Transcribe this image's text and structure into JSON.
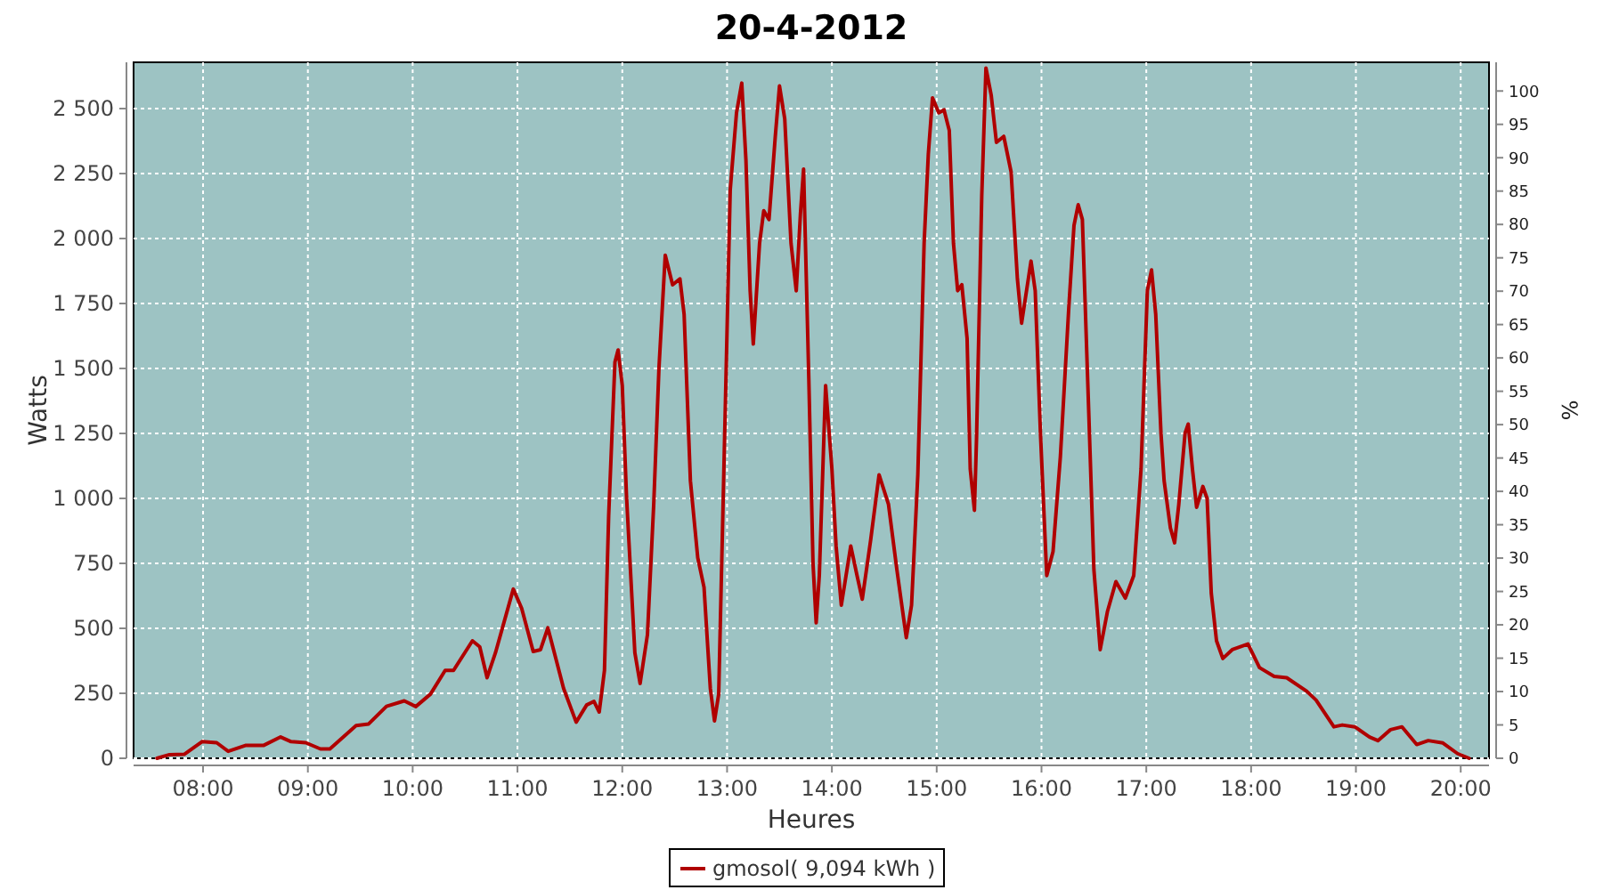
{
  "chart_data": {
    "type": "line",
    "title": "20-4-2012",
    "xlabel": "Heures",
    "ylabel": "Watts",
    "y2label": "%",
    "xlim": [
      7.337,
      20.27
    ],
    "xticks": [
      {
        "value": 8,
        "label": "08:00"
      },
      {
        "value": 9,
        "label": "09:00"
      },
      {
        "value": 10,
        "label": "10:00"
      },
      {
        "value": 11,
        "label": "11:00"
      },
      {
        "value": 12,
        "label": "12:00"
      },
      {
        "value": 13,
        "label": "13:00"
      },
      {
        "value": 14,
        "label": "14:00"
      },
      {
        "value": 15,
        "label": "15:00"
      },
      {
        "value": 16,
        "label": "16:00"
      },
      {
        "value": 17,
        "label": "17:00"
      },
      {
        "value": 18,
        "label": "18:00"
      },
      {
        "value": 19,
        "label": "19:00"
      },
      {
        "value": 20,
        "label": "20:00"
      }
    ],
    "ylim": [
      0,
      2678
    ],
    "yticks": [
      0,
      250,
      500,
      750,
      {
        "value": 1000,
        "label": "1 000"
      },
      {
        "value": 1250,
        "label": "1 250"
      },
      {
        "value": 1500,
        "label": "1 500"
      },
      {
        "value": 1750,
        "label": "1 750"
      },
      {
        "value": 2000,
        "label": "2 000"
      },
      {
        "value": 2250,
        "label": "2 250"
      },
      {
        "value": 2500,
        "label": "2 500"
      }
    ],
    "y2lim": [
      0,
      104.3
    ],
    "y2ticks": [
      0,
      5,
      10,
      15,
      20,
      25,
      30,
      35,
      40,
      45,
      50,
      55,
      60,
      65,
      70,
      75,
      80,
      85,
      90,
      95,
      100
    ],
    "grid": true,
    "legend": "bottom",
    "series": [
      {
        "name": "gmosol( 9,094 kWh )",
        "color": "#b00000",
        "x": [
          7.56,
          7.68,
          7.82,
          7.99,
          8.13,
          8.24,
          8.41,
          8.58,
          8.74,
          8.84,
          8.98,
          9.12,
          9.21,
          9.46,
          9.58,
          9.75,
          9.92,
          10.03,
          10.17,
          10.31,
          10.39,
          10.57,
          10.64,
          10.71,
          10.79,
          10.96,
          11.04,
          11.15,
          11.22,
          11.29,
          11.44,
          11.56,
          11.66,
          11.73,
          11.78,
          11.83,
          11.87,
          11.93,
          11.96,
          12.0,
          12.04,
          12.12,
          12.17,
          12.24,
          12.3,
          12.35,
          12.41,
          12.48,
          12.55,
          12.59,
          12.65,
          12.72,
          12.78,
          12.84,
          12.88,
          12.92,
          12.98,
          13.03,
          13.09,
          13.14,
          13.18,
          13.22,
          13.25,
          13.31,
          13.35,
          13.4,
          13.46,
          13.5,
          13.55,
          13.61,
          13.66,
          13.7,
          13.73,
          13.78,
          13.82,
          13.85,
          13.88,
          13.94,
          14.0,
          14.04,
          14.09,
          14.18,
          14.24,
          14.29,
          14.37,
          14.45,
          14.54,
          14.62,
          14.71,
          14.76,
          14.82,
          14.88,
          14.92,
          14.96,
          15.02,
          15.07,
          15.12,
          15.16,
          15.2,
          15.24,
          15.29,
          15.32,
          15.36,
          15.38,
          15.43,
          15.47,
          15.52,
          15.57,
          15.64,
          15.71,
          15.77,
          15.81,
          15.9,
          15.94,
          15.99,
          16.05,
          16.11,
          16.18,
          16.26,
          16.31,
          16.35,
          16.39,
          16.45,
          16.5,
          16.56,
          16.63,
          16.71,
          16.8,
          16.88,
          16.95,
          17.01,
          17.05,
          17.09,
          17.14,
          17.17,
          17.23,
          17.27,
          17.31,
          17.37,
          17.4,
          17.44,
          17.48,
          17.54,
          17.58,
          17.62,
          17.67,
          17.73,
          17.82,
          17.97,
          18.08,
          18.22,
          18.34,
          18.53,
          18.62,
          18.79,
          18.87,
          18.99,
          19.13,
          19.21,
          19.33,
          19.44,
          19.58,
          19.69,
          19.83,
          19.97,
          20.08
        ],
        "values": [
          0,
          14,
          15,
          64,
          60,
          27,
          50,
          50,
          82,
          64,
          60,
          36,
          36,
          126,
          132,
          200,
          221,
          199,
          247,
          338,
          338,
          452,
          429,
          310,
          406,
          651,
          577,
          411,
          418,
          502,
          269,
          139,
          205,
          219,
          178,
          338,
          932,
          1525,
          1571,
          1434,
          1011,
          406,
          288,
          475,
          977,
          1502,
          1936,
          1822,
          1845,
          1708,
          1068,
          772,
          658,
          269,
          144,
          247,
          1297,
          2187,
          2484,
          2598,
          2301,
          1799,
          1594,
          1982,
          2107,
          2073,
          2393,
          2587,
          2461,
          1982,
          1799,
          2096,
          2267,
          1457,
          749,
          521,
          703,
          1434,
          1114,
          817,
          589,
          817,
          703,
          612,
          840,
          1091,
          977,
          726,
          464,
          589,
          1091,
          1982,
          2324,
          2541,
          2484,
          2495,
          2416,
          1982,
          1799,
          1822,
          1616,
          1114,
          954,
          1228,
          2164,
          2656,
          2552,
          2370,
          2393,
          2256,
          1845,
          1674,
          1913,
          1799,
          1251,
          703,
          795,
          1160,
          1731,
          2050,
          2130,
          2073,
          1342,
          726,
          418,
          566,
          680,
          616,
          703,
          1114,
          1799,
          1879,
          1708,
          1251,
          1068,
          886,
          829,
          977,
          1251,
          1286,
          1114,
          966,
          1046,
          1000,
          635,
          452,
          384,
          418,
          440,
          349,
          315,
          310,
          258,
          224,
          121,
          128,
          121,
          82,
          68,
          110,
          121,
          53,
          68,
          59,
          18,
          0
        ]
      }
    ]
  }
}
